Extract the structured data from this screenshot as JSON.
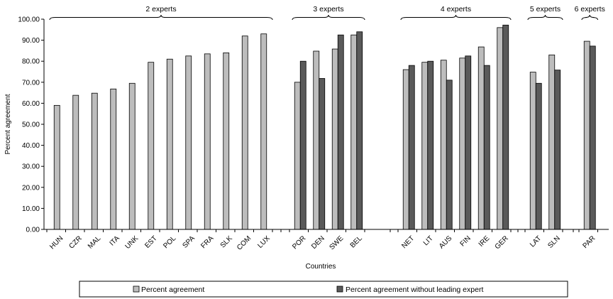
{
  "chart_data": {
    "type": "bar",
    "xlabel": "Countries",
    "ylabel": "Percent agreement",
    "ylim": [
      0,
      100
    ],
    "ytick_step": 10,
    "ytick_format": "2 decimals",
    "grid": false,
    "legend_position": "bottom",
    "colors": {
      "percent_agreement": "#bdbdbd",
      "without_leading": "#5a5a5a"
    },
    "series": [
      {
        "key": "percent_agreement",
        "name": "Percent agreement"
      },
      {
        "key": "without_leading",
        "name": "Percent agreement without leading expert"
      }
    ],
    "groups": [
      {
        "label": "2 experts",
        "categories": [
          {
            "name": "HUN",
            "values": [
              59.0,
              null
            ]
          },
          {
            "name": "CZR",
            "values": [
              63.8,
              null
            ]
          },
          {
            "name": "MAL",
            "values": [
              64.8,
              null
            ]
          },
          {
            "name": "ITA",
            "values": [
              66.8,
              null
            ]
          },
          {
            "name": "UNK",
            "values": [
              69.5,
              null
            ]
          },
          {
            "name": "EST",
            "values": [
              79.5,
              null
            ]
          },
          {
            "name": "POL",
            "values": [
              81.0,
              null
            ]
          },
          {
            "name": "SPA",
            "values": [
              82.5,
              null
            ]
          },
          {
            "name": "FRA",
            "values": [
              83.5,
              null
            ]
          },
          {
            "name": "SLK",
            "values": [
              84.0,
              null
            ]
          },
          {
            "name": "COM",
            "values": [
              92.0,
              null
            ]
          },
          {
            "name": "LUX",
            "values": [
              93.0,
              null
            ]
          }
        ]
      },
      {
        "label": "3 experts",
        "categories": [
          {
            "name": "POR",
            "values": [
              70.0,
              80.0
            ]
          },
          {
            "name": "DEN",
            "values": [
              84.8,
              71.8
            ]
          },
          {
            "name": "SWE",
            "values": [
              85.8,
              92.5
            ]
          },
          {
            "name": "BEL",
            "values": [
              92.5,
              94.0
            ]
          }
        ]
      },
      {
        "label": "4 experts",
        "categories": [
          {
            "name": "NET",
            "values": [
              76.0,
              78.0
            ]
          },
          {
            "name": "LIT",
            "values": [
              79.5,
              80.0
            ]
          },
          {
            "name": "AUS",
            "values": [
              80.5,
              71.0
            ]
          },
          {
            "name": "FIN",
            "values": [
              81.5,
              82.5
            ]
          },
          {
            "name": "IRE",
            "values": [
              86.8,
              78.0
            ]
          },
          {
            "name": "GER",
            "values": [
              96.0,
              97.2
            ]
          }
        ]
      },
      {
        "label": "5 experts",
        "categories": [
          {
            "name": "LAT",
            "values": [
              74.8,
              69.5
            ]
          },
          {
            "name": "SLN",
            "values": [
              83.0,
              75.8
            ]
          }
        ]
      },
      {
        "label": "6 experts",
        "categories": [
          {
            "name": "PAR",
            "values": [
              89.5,
              87.2
            ]
          }
        ]
      }
    ]
  }
}
